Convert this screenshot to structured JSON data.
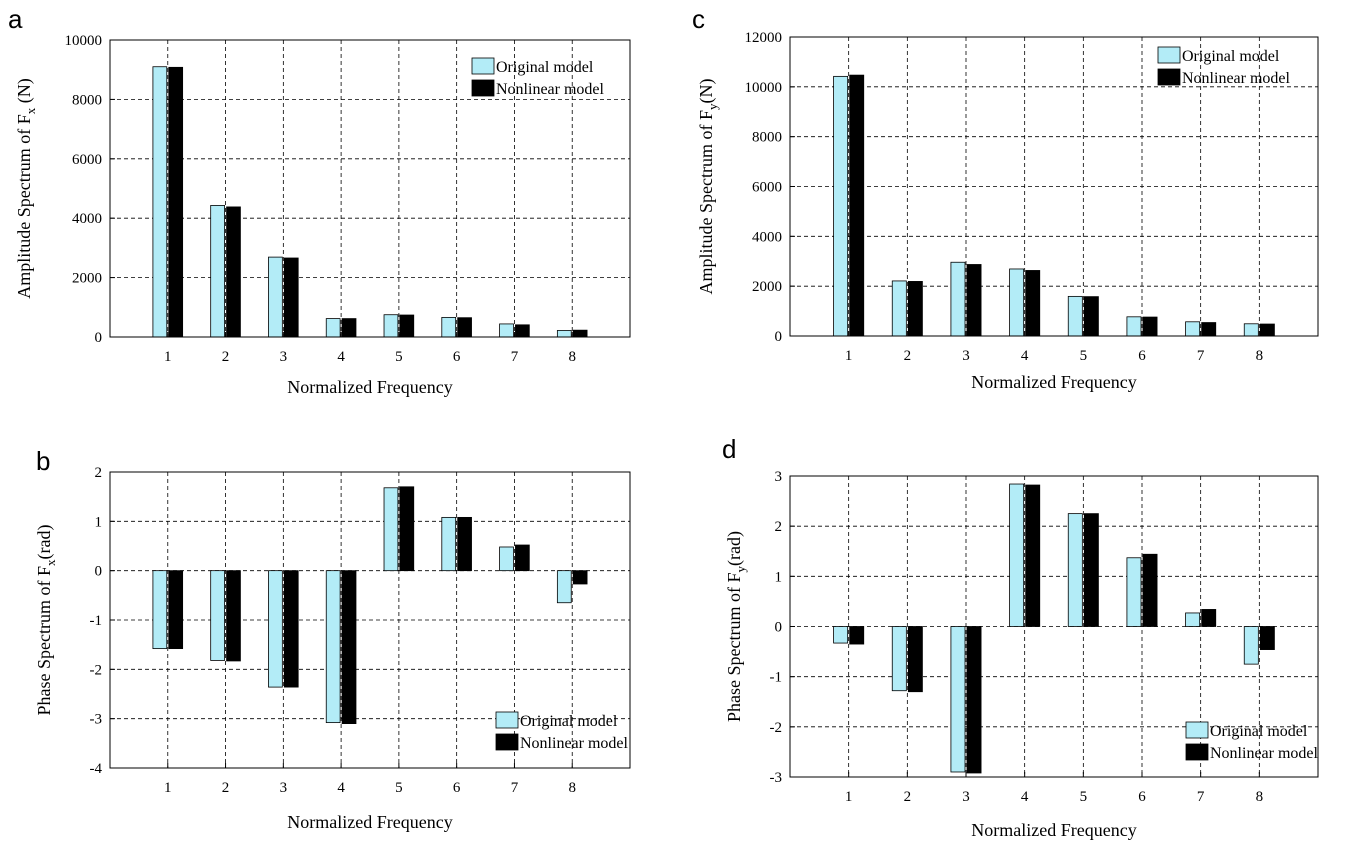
{
  "colors": {
    "original": "#b3ecf7",
    "nonlinear": "#000000"
  },
  "chart_data": [
    {
      "panel": "a",
      "type": "bar",
      "categories": [
        "1",
        "2",
        "3",
        "4",
        "5",
        "6",
        "7",
        "8"
      ],
      "ylim": [
        0,
        10000
      ],
      "yticks": [
        0,
        2000,
        4000,
        6000,
        8000,
        10000
      ],
      "xlabel": "Normalized Frequency",
      "ylabel_main": "Amplitude Spectrum of F",
      "ylabel_sub": "x",
      "ylabel_tail": " (N)",
      "grid": true,
      "legend_position": "top-right",
      "series": [
        {
          "name": "Original model",
          "values": [
            9100,
            4430,
            2690,
            620,
            750,
            660,
            440,
            220
          ]
        },
        {
          "name": "Nonlinear model",
          "values": [
            9080,
            4380,
            2660,
            620,
            740,
            650,
            410,
            230
          ]
        }
      ]
    },
    {
      "panel": "b",
      "type": "bar",
      "categories": [
        "1",
        "2",
        "3",
        "4",
        "5",
        "6",
        "7",
        "8"
      ],
      "ylim": [
        -4,
        2
      ],
      "yticks": [
        -4,
        -3,
        -2,
        -1,
        0,
        1,
        2
      ],
      "xlabel": "Normalized Frequency",
      "ylabel_main": "Phase Spectrum of F",
      "ylabel_sub": "x",
      "ylabel_tail": "(rad)",
      "grid": true,
      "legend_position": "bottom-right",
      "series": [
        {
          "name": "Original model",
          "values": [
            -1.58,
            -1.82,
            -2.36,
            -3.08,
            1.68,
            1.08,
            0.48,
            -0.65
          ]
        },
        {
          "name": "Nonlinear model",
          "values": [
            -1.58,
            -1.83,
            -2.36,
            -3.1,
            1.7,
            1.08,
            0.52,
            -0.27
          ]
        }
      ]
    },
    {
      "panel": "c",
      "type": "bar",
      "categories": [
        "1",
        "2",
        "3",
        "4",
        "5",
        "6",
        "7",
        "8"
      ],
      "ylim": [
        0,
        12000
      ],
      "yticks": [
        0,
        2000,
        4000,
        6000,
        8000,
        10000,
        12000
      ],
      "xlabel": "Normalized Frequency",
      "ylabel_main": "Amplitude Spectrum of F",
      "ylabel_sub": "y",
      "ylabel_tail": "(N)",
      "grid": true,
      "legend_position": "top-right",
      "series": [
        {
          "name": "Original model",
          "values": [
            10420,
            2210,
            2960,
            2690,
            1590,
            770,
            570,
            490
          ]
        },
        {
          "name": "Nonlinear model",
          "values": [
            10470,
            2190,
            2870,
            2630,
            1580,
            760,
            540,
            480
          ]
        }
      ]
    },
    {
      "panel": "d",
      "type": "bar",
      "categories": [
        "1",
        "2",
        "3",
        "4",
        "5",
        "6",
        "7",
        "8"
      ],
      "ylim": [
        -3,
        3
      ],
      "yticks": [
        -3,
        -2,
        -1,
        0,
        1,
        2,
        3
      ],
      "xlabel": "Normalized Frequency",
      "ylabel_main": "Phase Spectrum of F",
      "ylabel_sub": "y",
      "ylabel_tail": "(rad)",
      "grid": true,
      "legend_position": "bottom-right",
      "series": [
        {
          "name": "Original model",
          "values": [
            -0.33,
            -1.28,
            -2.9,
            2.84,
            2.25,
            1.37,
            0.27,
            -0.75
          ]
        },
        {
          "name": "Nonlinear model",
          "values": [
            -0.35,
            -1.3,
            -2.92,
            2.82,
            2.25,
            1.44,
            0.34,
            -0.46
          ]
        }
      ]
    }
  ]
}
